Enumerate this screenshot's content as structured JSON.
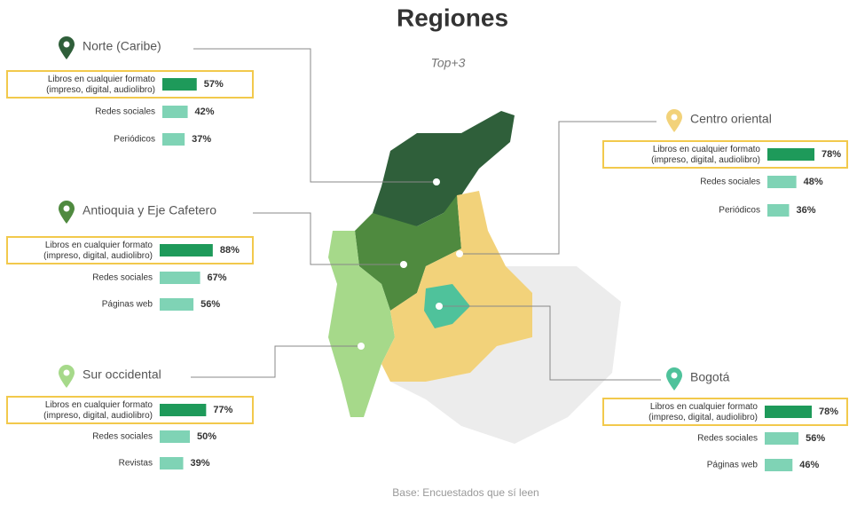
{
  "title": "Regiones",
  "subtitle": "Top+3",
  "regions": [
    {
      "name": "Norte (Caribe)",
      "items": [
        {
          "label": "Libros en cualquier formato (impreso, digital, audiolibro)",
          "value": 57,
          "value_label": "57%"
        },
        {
          "label": "Redes sociales",
          "value": 42,
          "value_label": "42%"
        },
        {
          "label": "Periódicos",
          "value": 37,
          "value_label": "37%"
        }
      ]
    },
    {
      "name": "Antioquia y Eje Cafetero",
      "items": [
        {
          "label": "Libros en cualquier formato (impreso, digital, audiolibro)",
          "value": 88,
          "value_label": "88%"
        },
        {
          "label": "Redes sociales",
          "value": 67,
          "value_label": "67%"
        },
        {
          "label": "Páginas web",
          "value": 56,
          "value_label": "56%"
        }
      ]
    },
    {
      "name": "Sur occidental",
      "items": [
        {
          "label": "Libros en cualquier formato (impreso, digital, audiolibro)",
          "value": 77,
          "value_label": "77%"
        },
        {
          "label": "Redes sociales",
          "value": 50,
          "value_label": "50%"
        },
        {
          "label": "Revistas",
          "value": 39,
          "value_label": "39%"
        }
      ]
    },
    {
      "name": "Centro oriental",
      "items": [
        {
          "label": "Libros en cualquier formato (impreso, digital, audiolibro)",
          "value": 78,
          "value_label": "78%"
        },
        {
          "label": "Redes sociales",
          "value": 48,
          "value_label": "48%"
        },
        {
          "label": "Periódicos",
          "value": 36,
          "value_label": "36%"
        }
      ]
    },
    {
      "name": "Bogotá",
      "items": [
        {
          "label": "Libros en cualquier formato (impreso, digital, audiolibro)",
          "value": 78,
          "value_label": "78%"
        },
        {
          "label": "Redes sociales",
          "value": 56,
          "value_label": "56%"
        },
        {
          "label": "Páginas web",
          "value": 46,
          "value_label": "46%"
        }
      ]
    }
  ],
  "footer": "Base: Encuestados que sí leen"
}
